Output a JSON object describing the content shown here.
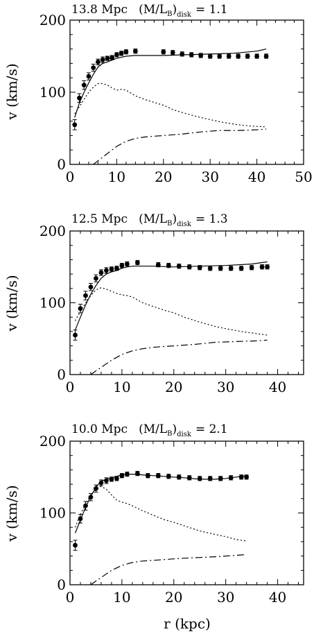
{
  "figure": {
    "ylabel": "v (km/s)",
    "xlabel": "r (kpc)"
  },
  "chart_data": [
    {
      "type": "line",
      "title_distance": "13.8 Mpc",
      "title_ml_prefix": "(M/L",
      "title_ml_sub1": "B",
      "title_ml_close": ")",
      "title_ml_sub2": "disk",
      "title_ml_eq": "= 1.1",
      "ylabel": "v (km/s)",
      "xlabel": "",
      "xlim": [
        0,
        50
      ],
      "ylim": [
        0,
        200
      ],
      "xticks": [
        0,
        10,
        20,
        30,
        40,
        50
      ],
      "yticks": [
        0,
        100,
        200
      ],
      "observed": {
        "x": [
          1,
          2,
          3,
          4,
          5,
          6,
          7,
          8,
          9,
          10,
          11,
          12,
          14,
          20,
          22,
          24,
          26,
          28,
          30,
          32,
          34,
          36,
          38,
          40,
          42
        ],
        "y": [
          55,
          92,
          110,
          122,
          134,
          142,
          145,
          147,
          148,
          152,
          154,
          156,
          157,
          156,
          155,
          153,
          152,
          151,
          150,
          150,
          150,
          150,
          150,
          150,
          150
        ],
        "err": [
          7,
          6,
          6,
          5,
          5,
          4,
          4,
          3,
          3,
          3,
          3,
          3,
          3,
          3,
          3,
          3,
          3,
          3,
          3,
          3,
          3,
          3,
          3,
          3,
          3
        ]
      },
      "series": [
        {
          "style": "solid",
          "x": [
            1,
            2,
            3,
            4,
            5,
            6,
            7,
            8,
            10,
            12,
            14,
            16,
            20,
            25,
            30,
            35,
            40,
            42
          ],
          "y": [
            65,
            85,
            100,
            113,
            125,
            135,
            140,
            142,
            147,
            150,
            151,
            151,
            151,
            152,
            153,
            154,
            157,
            160
          ]
        },
        {
          "style": "dotted",
          "x": [
            1,
            2,
            3,
            4,
            5,
            6,
            7,
            8,
            9,
            10,
            11,
            12,
            14,
            16,
            18,
            20,
            22,
            25,
            28,
            30,
            33,
            36,
            39,
            42
          ],
          "y": [
            70,
            80,
            90,
            100,
            107,
            112,
            112,
            110,
            106,
            103,
            104,
            103,
            95,
            90,
            86,
            82,
            76,
            70,
            65,
            62,
            58,
            55,
            53,
            52
          ]
        },
        {
          "style": "dashdot",
          "x": [
            5,
            6,
            8,
            10,
            12,
            14,
            16,
            18,
            20,
            24,
            28,
            32,
            36,
            40,
            42
          ],
          "y": [
            0,
            5,
            15,
            25,
            32,
            36,
            38,
            39,
            40,
            42,
            45,
            47,
            47,
            48,
            49
          ]
        }
      ]
    },
    {
      "type": "line",
      "title_distance": "12.5 Mpc",
      "title_ml_prefix": "(M/L",
      "title_ml_sub1": "B",
      "title_ml_close": ")",
      "title_ml_sub2": "disk",
      "title_ml_eq": "= 1.3",
      "ylabel": "v (km/s)",
      "xlabel": "",
      "xlim": [
        0,
        45
      ],
      "ylim": [
        0,
        200
      ],
      "xticks": [
        0,
        10,
        20,
        30,
        40
      ],
      "yticks": [
        0,
        100,
        200
      ],
      "observed": {
        "x": [
          1,
          2,
          3,
          4,
          5,
          6,
          7,
          8,
          9,
          10,
          11,
          13,
          17,
          19,
          21,
          23,
          25,
          27,
          29,
          31,
          33,
          35,
          37,
          38
        ],
        "y": [
          55,
          92,
          110,
          122,
          134,
          142,
          145,
          147,
          148,
          152,
          154,
          156,
          153,
          152,
          151,
          150,
          149,
          148,
          148,
          148,
          148,
          149,
          150,
          150
        ],
        "err": [
          7,
          6,
          6,
          5,
          5,
          4,
          4,
          3,
          3,
          3,
          3,
          3,
          3,
          3,
          3,
          3,
          3,
          3,
          3,
          3,
          3,
          3,
          3,
          3
        ]
      },
      "series": [
        {
          "style": "solid",
          "x": [
            1,
            2,
            3,
            4,
            5,
            6,
            7,
            8,
            9,
            10,
            11,
            12,
            14,
            16,
            20,
            25,
            30,
            35,
            38
          ],
          "y": [
            62,
            80,
            97,
            112,
            124,
            134,
            140,
            143,
            145,
            148,
            150,
            151,
            151,
            151,
            150,
            151,
            152,
            154,
            157
          ]
        },
        {
          "style": "dotted",
          "x": [
            1,
            2,
            3,
            4,
            5,
            6,
            7,
            8,
            9,
            10,
            11,
            12,
            14,
            16,
            18,
            20,
            22,
            25,
            28,
            30,
            33,
            36,
            38
          ],
          "y": [
            75,
            88,
            100,
            110,
            118,
            121,
            119,
            116,
            113,
            111,
            110,
            108,
            100,
            95,
            90,
            86,
            80,
            73,
            67,
            64,
            60,
            57,
            55
          ]
        },
        {
          "style": "dashdot",
          "x": [
            4,
            5,
            6,
            8,
            10,
            12,
            14,
            16,
            18,
            20,
            24,
            28,
            32,
            36,
            38
          ],
          "y": [
            0,
            5,
            10,
            20,
            28,
            33,
            36,
            38,
            39,
            40,
            42,
            45,
            46,
            47,
            48
          ]
        }
      ]
    },
    {
      "type": "line",
      "title_distance": "10.0 Mpc",
      "title_ml_prefix": "(M/L",
      "title_ml_sub1": "B",
      "title_ml_close": ")",
      "title_ml_sub2": "disk",
      "title_ml_eq": "= 2.1",
      "ylabel": "v (km/s)",
      "xlabel": "r (kpc)",
      "xlim": [
        0,
        45
      ],
      "ylim": [
        0,
        200
      ],
      "xticks": [
        0,
        10,
        20,
        30,
        40
      ],
      "yticks": [
        0,
        100,
        200
      ],
      "observed": {
        "x": [
          1,
          2,
          3,
          4,
          5,
          6,
          7,
          8,
          9,
          10,
          11,
          13,
          15,
          17,
          19,
          21,
          23,
          25,
          27,
          29,
          31,
          33,
          34
        ],
        "y": [
          55,
          92,
          110,
          122,
          134,
          142,
          145,
          147,
          148,
          152,
          154,
          155,
          152,
          152,
          151,
          150,
          149,
          148,
          148,
          148,
          149,
          150,
          150
        ],
        "err": [
          7,
          6,
          6,
          5,
          5,
          4,
          4,
          3,
          3,
          3,
          3,
          3,
          3,
          3,
          3,
          3,
          3,
          3,
          3,
          3,
          3,
          3,
          3
        ]
      },
      "series": [
        {
          "style": "solid",
          "x": [
            1,
            2,
            3,
            4,
            5,
            6,
            7,
            8,
            9,
            10,
            11,
            12,
            14,
            16,
            18,
            20,
            22,
            25,
            28,
            30,
            32,
            34
          ],
          "y": [
            72,
            90,
            108,
            123,
            136,
            144,
            147,
            149,
            151,
            153,
            154,
            154,
            153,
            152,
            151,
            150,
            149,
            147,
            147,
            148,
            150,
            152
          ]
        },
        {
          "style": "dotted",
          "x": [
            1,
            2,
            3,
            4,
            5,
            6,
            7,
            8,
            9,
            10,
            11,
            12,
            14,
            16,
            18,
            20,
            22,
            25,
            28,
            30,
            32,
            34
          ],
          "y": [
            80,
            98,
            113,
            125,
            133,
            137,
            133,
            125,
            118,
            115,
            113,
            110,
            103,
            97,
            91,
            87,
            82,
            75,
            70,
            67,
            63,
            61
          ]
        },
        {
          "style": "dashdot",
          "x": [
            4,
            5,
            6,
            8,
            10,
            12,
            14,
            16,
            18,
            20,
            22,
            25,
            28,
            30,
            32,
            34
          ],
          "y": [
            0,
            5,
            10,
            20,
            27,
            31,
            33,
            34,
            35,
            36,
            37,
            38,
            39,
            40,
            41,
            42
          ]
        }
      ]
    }
  ]
}
